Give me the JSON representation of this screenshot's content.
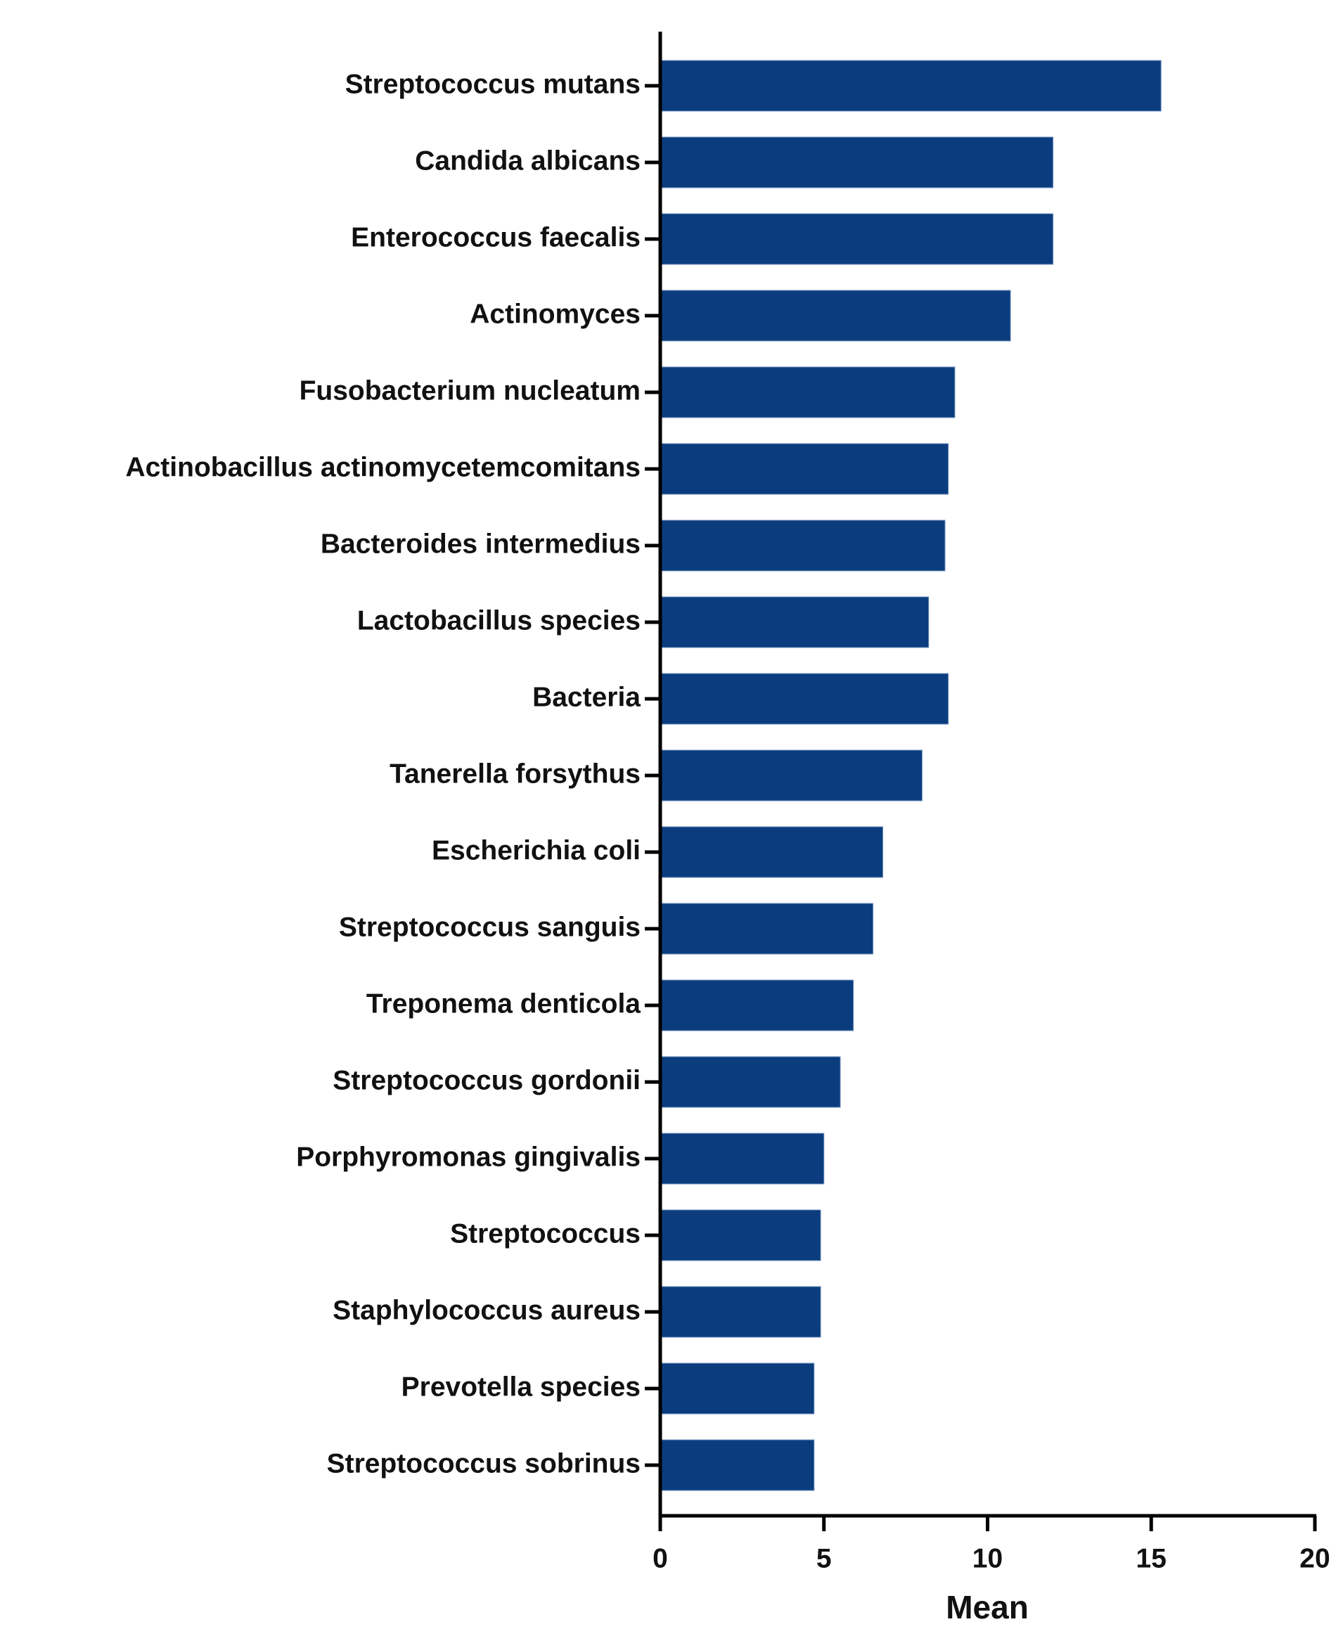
{
  "chart_data": {
    "type": "hbar",
    "xlabel": "Mean",
    "categories": [
      "Streptococcus mutans",
      "Candida albicans",
      "Enterococcus faecalis",
      "Actinomyces",
      "Fusobacterium nucleatum",
      "Actinobacillus actinomycetemcomitans",
      "Bacteroides intermedius",
      "Lactobacillus species",
      "Bacteria",
      "Tanerella forsythus",
      "Escherichia coli",
      "Streptococcus sanguis",
      "Treponema denticola",
      "Streptococcus gordonii",
      "Porphyromonas gingivalis",
      "Streptococcus",
      "Staphylococcus aureus",
      "Prevotella species",
      "Streptococcus sobrinus"
    ],
    "values": [
      15.3,
      12.0,
      12.0,
      10.7,
      9.0,
      8.8,
      8.7,
      8.2,
      8.8,
      8.0,
      6.8,
      6.5,
      5.9,
      5.5,
      5.0,
      4.9,
      4.9,
      4.7,
      4.7
    ],
    "color": "#0b3d7e",
    "xlim": [
      0,
      20
    ],
    "xticks": [
      0,
      5,
      10,
      15,
      20
    ]
  }
}
